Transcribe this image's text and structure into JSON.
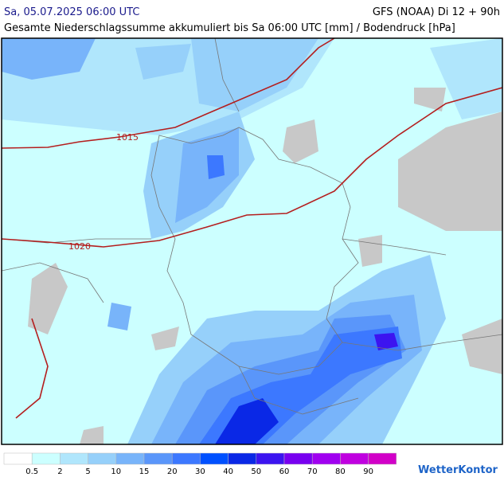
{
  "header": {
    "date": "Sa, 05.07.2025 06:00 UTC",
    "model": "GFS (NOAA) Di 12 + 90h",
    "subtitle": "Gesamte Niederschlagssumme akkumuliert bis Sa 06:00 UTC [mm] / Bodendruck [hPa]"
  },
  "map": {
    "isobars": [
      {
        "label": "1015"
      },
      {
        "label": "1020"
      }
    ]
  },
  "legend": {
    "thresholds": [
      0.5,
      2,
      5,
      10,
      15,
      20,
      30,
      40,
      50,
      60,
      70,
      80,
      90
    ],
    "colors": [
      "#ffffff",
      "#ccffff",
      "#b0e6fc",
      "#96d0fa",
      "#78b4fa",
      "#5a96fa",
      "#3c78ff",
      "#0050ff",
      "#0a28e6",
      "#3c14f0",
      "#7800f0",
      "#a000f0",
      "#c000e0",
      "#d200c8"
    ]
  },
  "brand": "WetterKontor"
}
